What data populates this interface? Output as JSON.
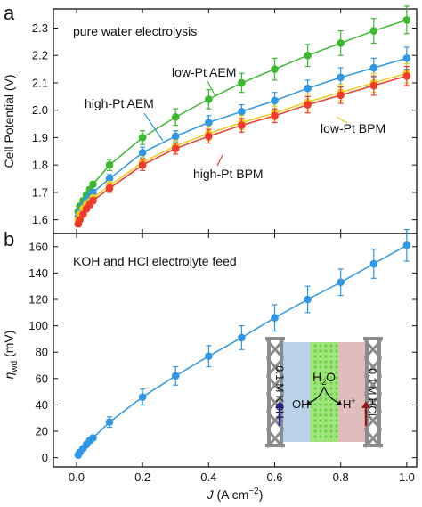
{
  "chart_data": [
    {
      "type": "line",
      "panel_label": "a",
      "annotation": "pure water electrolysis",
      "ylabel": "Cell Potential (V)",
      "ylim": [
        1.55,
        2.37
      ],
      "yticks": [
        1.6,
        1.7,
        1.8,
        1.9,
        2.0,
        2.1,
        2.2,
        2.3
      ],
      "xlim": [
        -0.07,
        1.03
      ],
      "xticks": [
        0.0,
        0.2,
        0.4,
        0.6,
        0.8,
        1.0
      ],
      "grid": false,
      "series": [
        {
          "name": "low-Pt AEM",
          "color": "#3cb930",
          "x": [
            0.005,
            0.01,
            0.02,
            0.03,
            0.04,
            0.05,
            0.1,
            0.2,
            0.3,
            0.4,
            0.5,
            0.6,
            0.7,
            0.8,
            0.9,
            1.0
          ],
          "y": [
            1.63,
            1.65,
            1.67,
            1.69,
            1.71,
            1.73,
            1.8,
            1.9,
            1.975,
            2.04,
            2.1,
            2.15,
            2.2,
            2.245,
            2.29,
            2.33
          ],
          "yerr": [
            0.01,
            0.01,
            0.01,
            0.01,
            0.01,
            0.01,
            0.02,
            0.025,
            0.03,
            0.035,
            0.035,
            0.04,
            0.04,
            0.045,
            0.045,
            0.05
          ]
        },
        {
          "name": "high-Pt AEM",
          "color": "#2f97e3",
          "x": [
            0.005,
            0.01,
            0.02,
            0.03,
            0.04,
            0.05,
            0.1,
            0.2,
            0.3,
            0.4,
            0.5,
            0.6,
            0.7,
            0.8,
            0.9,
            1.0
          ],
          "y": [
            1.61,
            1.63,
            1.65,
            1.67,
            1.685,
            1.7,
            1.75,
            1.845,
            1.905,
            1.955,
            1.995,
            2.035,
            2.08,
            2.12,
            2.155,
            2.19
          ],
          "yerr": [
            0.01,
            0.01,
            0.01,
            0.01,
            0.01,
            0.01,
            0.015,
            0.02,
            0.02,
            0.025,
            0.025,
            0.03,
            0.03,
            0.035,
            0.035,
            0.04
          ]
        },
        {
          "name": "low-Pt BPM",
          "color": "#f2cc1a",
          "x": [
            0.005,
            0.01,
            0.02,
            0.03,
            0.04,
            0.05,
            0.1,
            0.2,
            0.3,
            0.4,
            0.5,
            0.6,
            0.7,
            0.8,
            0.9,
            1.0
          ],
          "y": [
            1.6,
            1.62,
            1.64,
            1.655,
            1.665,
            1.68,
            1.725,
            1.81,
            1.87,
            1.915,
            1.955,
            1.99,
            2.03,
            2.065,
            2.1,
            2.135
          ],
          "yerr": [
            0.01,
            0.01,
            0.01,
            0.01,
            0.01,
            0.01,
            0.015,
            0.02,
            0.02,
            0.025,
            0.025,
            0.025,
            0.03,
            0.03,
            0.035,
            0.035
          ]
        },
        {
          "name": "high-Pt BPM",
          "color": "#ee3b2c",
          "x": [
            0.005,
            0.01,
            0.02,
            0.03,
            0.04,
            0.05,
            0.1,
            0.2,
            0.3,
            0.4,
            0.5,
            0.6,
            0.7,
            0.8,
            0.9,
            1.0
          ],
          "y": [
            1.585,
            1.6,
            1.62,
            1.64,
            1.655,
            1.67,
            1.715,
            1.8,
            1.86,
            1.905,
            1.945,
            1.98,
            2.02,
            2.055,
            2.09,
            2.125
          ],
          "yerr": [
            0.01,
            0.01,
            0.01,
            0.01,
            0.01,
            0.01,
            0.015,
            0.02,
            0.02,
            0.025,
            0.025,
            0.025,
            0.03,
            0.03,
            0.035,
            0.035
          ]
        }
      ]
    },
    {
      "type": "line",
      "panel_label": "b",
      "annotation": "KOH and HCl electrolyte feed",
      "ylabel": "ηwd (mV)",
      "ylabel_main": "η",
      "ylabel_sub": "wd",
      "ylabel_unit": " (mV)",
      "xlabel": "J (A cm⁻²)",
      "xlabel_main": "J",
      "xlabel_unit": " (A cm",
      "xlabel_sup": "−2",
      "xlabel_close": ")",
      "ylim": [
        -7,
        170
      ],
      "yticks": [
        0,
        20,
        40,
        60,
        80,
        100,
        120,
        140,
        160
      ],
      "xlim": [
        -0.07,
        1.03
      ],
      "xticks": [
        0.0,
        0.2,
        0.4,
        0.6,
        0.8,
        1.0
      ],
      "xtick_labels": [
        "0.0",
        "0.2",
        "0.4",
        "0.6",
        "0.8",
        "1.0"
      ],
      "grid": false,
      "series": [
        {
          "color": "#2f97e3",
          "x": [
            0.005,
            0.01,
            0.02,
            0.03,
            0.04,
            0.05,
            0.1,
            0.2,
            0.3,
            0.4,
            0.5,
            0.6,
            0.7,
            0.8,
            0.9,
            1.0
          ],
          "y": [
            2,
            4,
            7,
            10,
            13,
            15,
            27,
            46,
            62,
            77,
            91,
            106,
            120,
            133,
            147,
            161
          ],
          "yerr": [
            1,
            1,
            1,
            1,
            1,
            1,
            4,
            6,
            7,
            8,
            9,
            10,
            10,
            10,
            11,
            12
          ]
        }
      ],
      "inset": {
        "left_label": "0.1 M KOH",
        "right_label": "0.1 M HCl",
        "center_main": "H",
        "center_sub": "2",
        "center_tail": "O",
        "left_ion_main": "OH",
        "left_ion_sup": "−",
        "right_ion_main": "H",
        "right_ion_sup": "+",
        "colors": {
          "frame": "#8c8c8c",
          "anolyte": "#b9d2ea",
          "catalyst": "#9fe57b",
          "catholyte": "#e1bcbc",
          "oh_arrow": "#1d1d8c",
          "h_arrow": "#8c1d1d"
        }
      }
    }
  ]
}
